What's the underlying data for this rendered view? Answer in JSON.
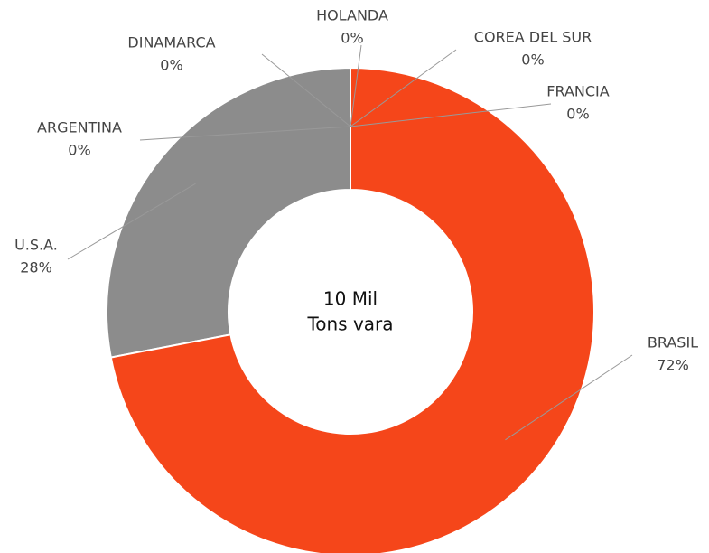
{
  "chart_data": {
    "type": "donut",
    "center_label": [
      "10 Mil",
      "Tons vara"
    ],
    "categories": [
      "BRASIL",
      "U.S.A.",
      "ARGENTINA",
      "DINAMARCA",
      "HOLANDA",
      "COREA DEL SUR",
      "FRANCIA"
    ],
    "values": [
      72,
      28,
      0,
      0,
      0,
      0,
      0
    ],
    "value_labels": [
      "72%",
      "28%",
      "0%",
      "0%",
      "0%",
      "0%",
      "0%"
    ],
    "colors": [
      "#f5461a",
      "#8c8c8c",
      "#c0c0c0",
      "#d9d9d9",
      "#eeeeee",
      "#bbbbbb",
      "#a0a0a0"
    ]
  }
}
